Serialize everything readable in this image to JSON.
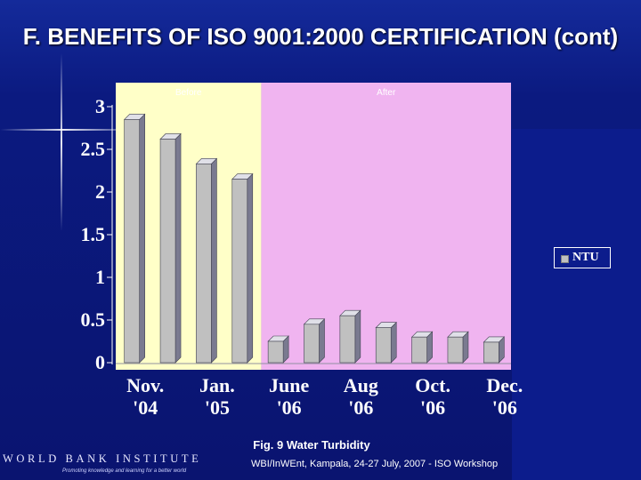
{
  "slide": {
    "title": "F. BENEFITS OF ISO 9001:2000 CERTIFICATION (cont)",
    "caption": "Fig. 9 Water Turbidity",
    "footer": "WBI/InWEnt, Kampala,  24-27 July, 2007 - ISO Workshop",
    "logo_text": "WORLD BANK INSTITUTE",
    "logo_tagline": "Promoting knowledge and learning for a better world"
  },
  "colors": {
    "background": "#0a1470",
    "before_region": "#ffffc8",
    "after_region": "#f0b4f0",
    "bar_face": "#c0c0c0",
    "bar_side": "#7a7a90",
    "bar_top": "#e0e0e8"
  },
  "chart_data": {
    "type": "bar",
    "categories": [
      "Nov. '04",
      "",
      "Jan. '05",
      "",
      "June '06",
      "",
      "Aug '06",
      "",
      "Oct. '06",
      "",
      "Dec. '06"
    ],
    "category_labels": [
      {
        "line1": "Nov.",
        "line2": "'04"
      },
      {
        "line1": "Jan.",
        "line2": "'05"
      },
      {
        "line1": "June",
        "line2": "'06"
      },
      {
        "line1": "Aug",
        "line2": "'06"
      },
      {
        "line1": "Oct.",
        "line2": "'06"
      },
      {
        "line1": "Dec.",
        "line2": "'06"
      }
    ],
    "bar_count": 11,
    "series": [
      {
        "name": "NTU",
        "values": [
          2.85,
          2.62,
          2.33,
          2.15,
          0.25,
          0.45,
          0.55,
          0.41,
          0.3,
          0.3,
          0.24
        ]
      }
    ],
    "regions": [
      {
        "label": "Before",
        "from_bar": 0,
        "to_bar": 3
      },
      {
        "label": "After",
        "from_bar": 4,
        "to_bar": 10
      }
    ],
    "ylim": [
      0,
      3
    ],
    "yticks": [
      "0",
      "0.5",
      "1",
      "1.5",
      "2",
      "2.5",
      "3"
    ],
    "ytick_values": [
      0,
      0.5,
      1,
      1.5,
      2,
      2.5,
      3
    ],
    "legend_position": "right",
    "grid": false
  }
}
